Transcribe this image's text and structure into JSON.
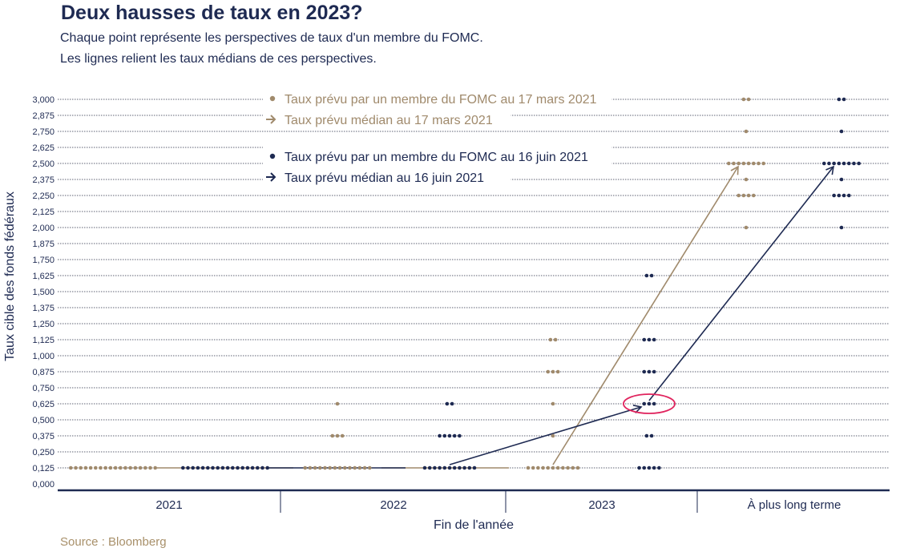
{
  "title": "Deux hausses de taux en 2023?",
  "subtitle_lines": [
    "Chaque point représente les perspectives de taux d'un membre du FOMC.",
    "Les lignes relient les taux médians de ces perspectives."
  ],
  "source": "Source : Bloomberg",
  "colors": {
    "march": "#a08a6c",
    "june": "#1e2a52",
    "grid": "#2a2f45",
    "circle": "#e0245e"
  },
  "chart_data": {
    "type": "scatter",
    "xlabel": "Fin de l'année",
    "ylabel": "Taux cible des fonds fédéraux",
    "categories": [
      "2021",
      "2022",
      "2023",
      "À plus long terme"
    ],
    "ylim": [
      0,
      3
    ],
    "y_ticks": [
      "0,000",
      "0,125",
      "0,250",
      "0,375",
      "0,500",
      "0,625",
      "0,750",
      "0,875",
      "1,000",
      "1,125",
      "1,250",
      "1,375",
      "1,500",
      "1,625",
      "1,750",
      "1,875",
      "2,000",
      "2,125",
      "2,250",
      "2,375",
      "2,500",
      "2,625",
      "2,750",
      "2,875",
      "3,000"
    ],
    "legend": [
      {
        "label": "Taux prévu par un membre du FOMC au 17 mars 2021",
        "marker": "dot",
        "series": "march"
      },
      {
        "label": "Taux prévu médian au 17 mars 2021",
        "marker": "arrow",
        "series": "march"
      },
      {
        "label": "Taux prévu par un membre du FOMC au 16 juin 2021",
        "marker": "dot",
        "series": "june"
      },
      {
        "label": "Taux prévu médian au 16 juin 2021",
        "marker": "arrow",
        "series": "june"
      }
    ],
    "legend_position": "top-center",
    "series": [
      {
        "key": "march",
        "points": [
          {
            "category": "2021",
            "rates": [
              [
                0.125,
                18
              ]
            ]
          },
          {
            "category": "2022",
            "rates": [
              [
                0.125,
                14
              ],
              [
                0.375,
                3
              ],
              [
                0.625,
                1
              ]
            ]
          },
          {
            "category": "2023",
            "rates": [
              [
                0.125,
                11
              ],
              [
                0.375,
                1
              ],
              [
                0.625,
                1
              ],
              [
                0.875,
                3
              ],
              [
                1.125,
                2
              ]
            ]
          },
          {
            "category": "À plus long terme",
            "rates": [
              [
                2.0,
                1
              ],
              [
                2.25,
                4
              ],
              [
                2.375,
                1
              ],
              [
                2.5,
                8
              ],
              [
                2.75,
                1
              ],
              [
                3.0,
                2
              ]
            ]
          }
        ],
        "medians": [
          0.125,
          0.125,
          0.125,
          2.5
        ]
      },
      {
        "key": "june",
        "points": [
          {
            "category": "2021",
            "rates": [
              [
                0.125,
                18
              ]
            ]
          },
          {
            "category": "2022",
            "rates": [
              [
                0.125,
                11
              ],
              [
                0.375,
                5
              ],
              [
                0.625,
                2
              ]
            ]
          },
          {
            "category": "2023",
            "rates": [
              [
                0.125,
                5
              ],
              [
                0.375,
                2
              ],
              [
                0.625,
                3
              ],
              [
                0.875,
                3
              ],
              [
                1.125,
                3
              ],
              [
                1.625,
                2
              ]
            ]
          },
          {
            "category": "À plus long terme",
            "rates": [
              [
                2.0,
                1
              ],
              [
                2.25,
                4
              ],
              [
                2.375,
                1
              ],
              [
                2.5,
                8
              ],
              [
                2.75,
                1
              ],
              [
                3.0,
                2
              ]
            ]
          }
        ],
        "medians": [
          0.125,
          0.125,
          0.625,
          2.5
        ]
      }
    ],
    "annotations": [
      {
        "type": "circle",
        "category": "2023",
        "series": "june",
        "rate": 0.625
      }
    ]
  }
}
